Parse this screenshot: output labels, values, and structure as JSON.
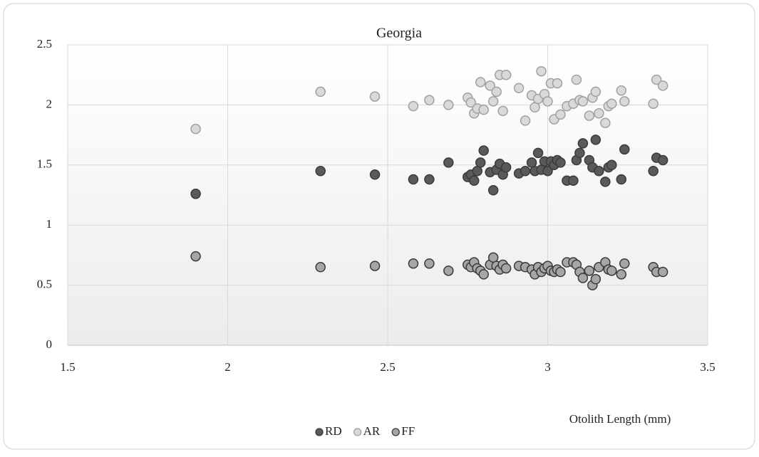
{
  "chart_data": {
    "type": "scatter",
    "title": "Georgia",
    "x_label": "Otolith Length (mm)",
    "xlim": [
      1.5,
      3.5
    ],
    "xticks": [
      1.5,
      2,
      2.5,
      3,
      3.5
    ],
    "ylim": [
      0,
      2.5
    ],
    "yticks": [
      0,
      0.5,
      1,
      1.5,
      2,
      2.5
    ],
    "grid": true,
    "legend": "bottom",
    "x": [
      1.9,
      2.29,
      2.46,
      2.58,
      2.63,
      2.69,
      2.75,
      2.76,
      2.77,
      2.78,
      2.79,
      2.8,
      2.82,
      2.83,
      2.84,
      2.85,
      2.86,
      2.87,
      2.91,
      2.93,
      2.95,
      2.96,
      2.97,
      2.98,
      2.99,
      3.0,
      3.01,
      3.02,
      3.03,
      3.04,
      3.06,
      3.08,
      3.09,
      3.1,
      3.11,
      3.13,
      3.14,
      3.15,
      3.16,
      3.18,
      3.19,
      3.2,
      3.23,
      3.24,
      3.33,
      3.34,
      3.36
    ],
    "series": [
      {
        "name": "RD",
        "color": "#5a5a5a",
        "values": [
          1.26,
          1.45,
          1.42,
          1.38,
          1.38,
          1.52,
          1.4,
          1.42,
          1.37,
          1.45,
          1.52,
          1.62,
          1.44,
          1.29,
          1.46,
          1.51,
          1.42,
          1.48,
          1.43,
          1.45,
          1.52,
          1.45,
          1.6,
          1.46,
          1.53,
          1.45,
          1.53,
          1.5,
          1.54,
          1.52,
          1.37,
          1.37,
          1.54,
          1.6,
          1.68,
          1.54,
          1.48,
          1.71,
          1.45,
          1.36,
          1.48,
          1.5,
          1.38,
          1.63,
          1.45,
          1.56,
          1.54
        ]
      },
      {
        "name": "AR",
        "color": "#d9d9d9",
        "values": [
          1.8,
          2.11,
          2.07,
          1.99,
          2.04,
          2.0,
          2.06,
          2.02,
          1.93,
          1.97,
          2.19,
          1.96,
          2.16,
          2.03,
          2.11,
          2.25,
          1.95,
          2.25,
          2.14,
          1.87,
          2.08,
          1.98,
          2.05,
          2.28,
          2.09,
          2.03,
          2.18,
          1.88,
          2.18,
          1.92,
          1.99,
          2.01,
          2.21,
          2.04,
          2.03,
          1.91,
          2.06,
          2.11,
          1.93,
          1.85,
          1.99,
          2.01,
          2.12,
          2.03,
          2.01,
          2.21,
          2.16
        ]
      },
      {
        "name": "FF",
        "color": "#a6a6a6",
        "values": [
          0.74,
          0.65,
          0.66,
          0.68,
          0.68,
          0.62,
          0.67,
          0.65,
          0.69,
          0.64,
          0.62,
          0.59,
          0.67,
          0.73,
          0.66,
          0.63,
          0.67,
          0.64,
          0.66,
          0.65,
          0.63,
          0.59,
          0.65,
          0.61,
          0.64,
          0.66,
          0.62,
          0.61,
          0.63,
          0.61,
          0.69,
          0.69,
          0.67,
          0.61,
          0.56,
          0.62,
          0.5,
          0.55,
          0.65,
          0.69,
          0.63,
          0.62,
          0.59,
          0.68,
          0.65,
          0.61,
          0.61
        ]
      }
    ]
  }
}
